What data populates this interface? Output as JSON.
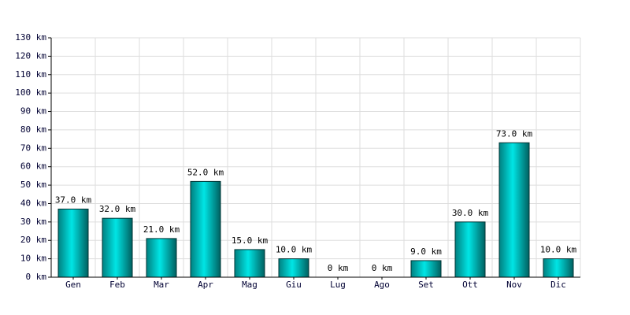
{
  "chart_data": {
    "type": "bar",
    "categories": [
      "Gen",
      "Feb",
      "Mar",
      "Apr",
      "Mag",
      "Giu",
      "Lug",
      "Ago",
      "Set",
      "Ott",
      "Nov",
      "Dic"
    ],
    "values": [
      37,
      32,
      21,
      52,
      15,
      10,
      0,
      0,
      9,
      30,
      73,
      10
    ],
    "value_labels": [
      "37.0 km",
      "32.0 km",
      "21.0 km",
      "52.0 km",
      "15.0 km",
      "10.0 km",
      "0 km",
      "0 km",
      "9.0 km",
      "30.0 km",
      "73.0 km",
      "10.0 km"
    ],
    "color": "#00e5e5",
    "ylim": [
      0,
      130
    ],
    "yticks": [
      {
        "value": 0,
        "label": "0 km"
      },
      {
        "value": 10,
        "label": "10 km"
      },
      {
        "value": 20,
        "label": "20 km"
      },
      {
        "value": 30,
        "label": "30 km"
      },
      {
        "value": 40,
        "label": "40 km"
      },
      {
        "value": 50,
        "label": "50 km"
      },
      {
        "value": 60,
        "label": "60 km"
      },
      {
        "value": 70,
        "label": "70 km"
      },
      {
        "value": 80,
        "label": "80 km"
      },
      {
        "value": 90,
        "label": "90 km"
      },
      {
        "value": 100,
        "label": "100 km"
      },
      {
        "value": 110,
        "label": "110 km"
      },
      {
        "value": 120,
        "label": "120 km"
      },
      {
        "value": 130,
        "label": "130 km"
      }
    ],
    "grid": true
  }
}
